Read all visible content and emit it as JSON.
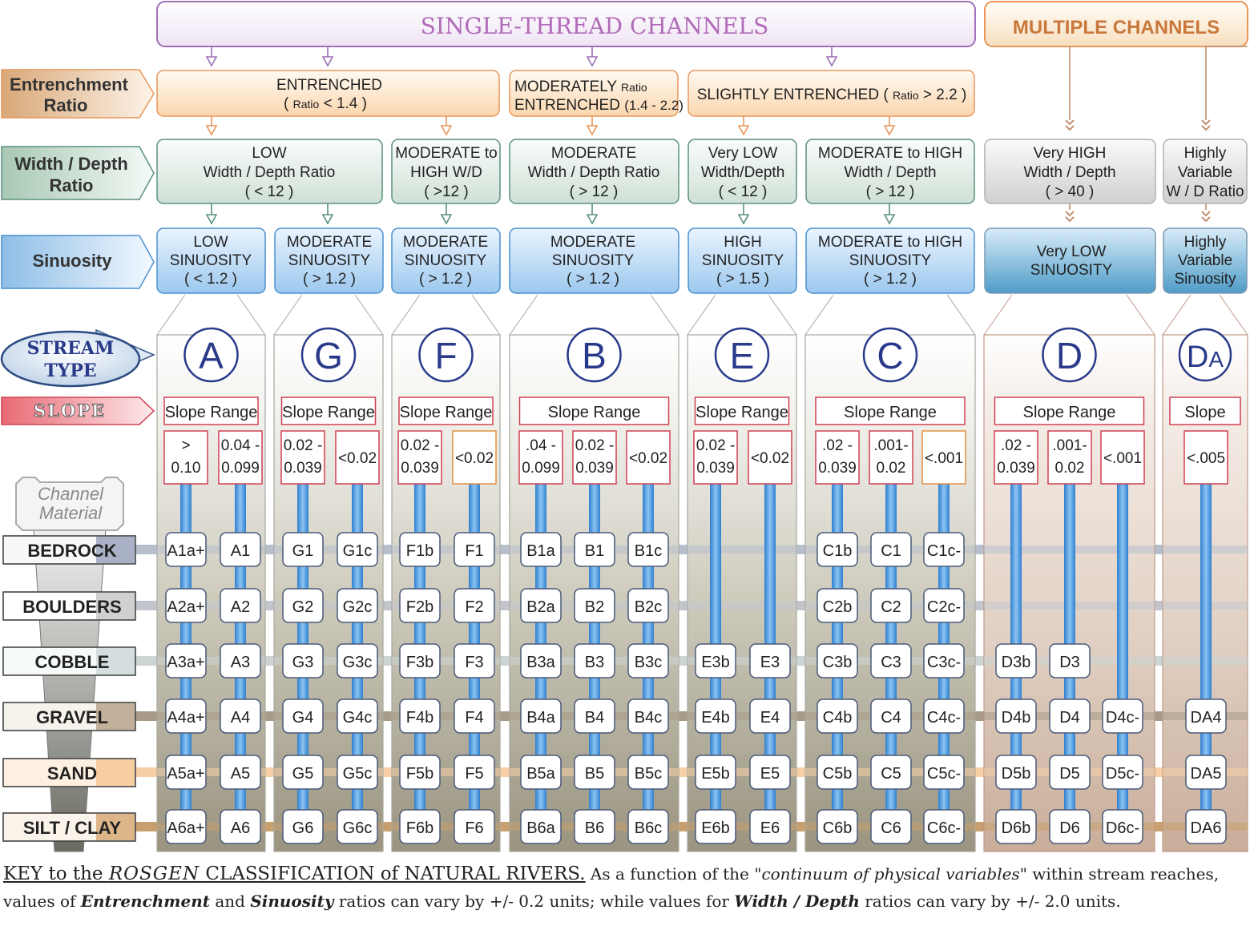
{
  "headers": {
    "single_thread": "SINGLE-THREAD  CHANNELS",
    "multiple": "MULTIPLE  CHANNELS"
  },
  "row_labels": {
    "entrenchment": [
      "Entrenchment",
      "Ratio"
    ],
    "width_depth": [
      "Width / Depth",
      "Ratio"
    ],
    "sinuosity": "Sinuosity",
    "stream_type": [
      "STREAM",
      "TYPE"
    ],
    "slope": "SLOPE",
    "channel_material": [
      "Channel",
      "Material"
    ]
  },
  "entrenchment_boxes": [
    {
      "lines": [
        [
          "ENTRENCHED"
        ],
        [
          "( ",
          "Ratio",
          "  < 1.4 )"
        ]
      ]
    },
    {
      "lines": [
        [
          "MODERATELY      ",
          "Ratio"
        ],
        [
          "ENTRENCHED ",
          "(1.4 - 2.2)"
        ]
      ]
    },
    {
      "lines": [
        [
          "SLIGHTLY  ENTRENCHED ( ",
          "Ratio",
          " > 2.2 )"
        ]
      ]
    }
  ],
  "width_depth_boxes": [
    {
      "lines": [
        "LOW",
        "Width / Depth Ratio",
        "( < 12 )"
      ]
    },
    {
      "lines": [
        "MODERATE to",
        "HIGH    W/D",
        "( >12 )"
      ]
    },
    {
      "lines": [
        "MODERATE",
        "Width / Depth Ratio",
        "( > 12 )"
      ]
    },
    {
      "lines": [
        "Very LOW",
        "Width/Depth",
        "( < 12 )"
      ]
    },
    {
      "lines": [
        "MODERATE to HIGH",
        "Width / Depth",
        "( > 12 )"
      ]
    },
    {
      "lines": [
        "Very HIGH",
        "Width / Depth",
        "( > 40 )"
      ]
    },
    {
      "lines": [
        "Highly",
        "Variable",
        "W / D Ratio"
      ]
    }
  ],
  "sinuosity_boxes": [
    {
      "lines": [
        "LOW",
        "SINUOSITY",
        "( < 1.2 )"
      ]
    },
    {
      "lines": [
        "MODERATE",
        "SINUOSITY",
        "( > 1.2 )"
      ]
    },
    {
      "lines": [
        "MODERATE",
        "SINUOSITY",
        "( > 1.2 )"
      ]
    },
    {
      "lines": [
        "MODERATE",
        "SINUOSITY",
        "( > 1.2 )"
      ]
    },
    {
      "lines": [
        "HIGH",
        "SINUOSITY",
        "( > 1.5 )"
      ]
    },
    {
      "lines": [
        "MODERATE to HIGH",
        "SINUOSITY",
        "( > 1.2 )"
      ]
    },
    {
      "lines": [
        "Very LOW",
        "SINUOSITY"
      ]
    },
    {
      "lines": [
        "Highly",
        "Variable",
        "Sinuosity"
      ]
    }
  ],
  "materials": [
    "BEDROCK",
    "BOULDERS",
    "COBBLE",
    "GRAVEL",
    "SAND",
    "SILT / CLAY"
  ],
  "stream_types": [
    {
      "letter": "A",
      "slope_label": "Slope Range",
      "slopes": [
        [
          ">",
          "0.10"
        ],
        [
          "0.04 -",
          "0.099"
        ]
      ],
      "codes": [
        [
          "A1a+",
          "A2a+",
          "A3a+",
          "A4a+",
          "A5a+",
          "A6a+"
        ],
        [
          "A1",
          "A2",
          "A3",
          "A4",
          "A5",
          "A6"
        ]
      ]
    },
    {
      "letter": "G",
      "slope_label": "Slope Range",
      "slopes": [
        [
          "0.02 -",
          "0.039"
        ],
        [
          "<0.02"
        ]
      ],
      "codes": [
        [
          "G1",
          "G2",
          "G3",
          "G4",
          "G5",
          "G6"
        ],
        [
          "G1c",
          "G2c",
          "G3c",
          "G4c",
          "G5c",
          "G6c"
        ]
      ]
    },
    {
      "letter": "F",
      "slope_label": "Slope Range",
      "slopes": [
        [
          "0.02 -",
          "0.039"
        ],
        [
          "<0.02"
        ]
      ],
      "codes": [
        [
          "F1b",
          "F2b",
          "F3b",
          "F4b",
          "F5b",
          "F6b"
        ],
        [
          "F1",
          "F2",
          "F3",
          "F4",
          "F5",
          "F6"
        ]
      ]
    },
    {
      "letter": "B",
      "slope_label": "Slope  Range",
      "slopes": [
        [
          ".04 -",
          "0.099"
        ],
        [
          "0.02 -",
          "0.039"
        ],
        [
          "<0.02"
        ]
      ],
      "codes": [
        [
          "B1a",
          "B2a",
          "B3a",
          "B4a",
          "B5a",
          "B6a"
        ],
        [
          "B1",
          "B2",
          "B3",
          "B4",
          "B5",
          "B6"
        ],
        [
          "B1c",
          "B2c",
          "B3c",
          "B4c",
          "B5c",
          "B6c"
        ]
      ]
    },
    {
      "letter": "E",
      "slope_label": "Slope Range",
      "slopes": [
        [
          "0.02 -",
          "0.039"
        ],
        [
          "<0.02"
        ]
      ],
      "codes": [
        [
          "",
          "",
          "E3b",
          "E4b",
          "E5b",
          "E6b"
        ],
        [
          "",
          "",
          "E3",
          "E4",
          "E5",
          "E6"
        ]
      ]
    },
    {
      "letter": "C",
      "slope_label": "Slope  Range",
      "slopes": [
        [
          ".02 -",
          "0.039"
        ],
        [
          ".001-",
          "0.02"
        ],
        [
          "<.001"
        ]
      ],
      "codes": [
        [
          "C1b",
          "C2b",
          "C3b",
          "C4b",
          "C5b",
          "C6b"
        ],
        [
          "C1",
          "C2",
          "C3",
          "C4",
          "C5",
          "C6"
        ],
        [
          "C1c-",
          "C2c-",
          "C3c-",
          "C4c-",
          "C5c-",
          "C6c-"
        ]
      ]
    },
    {
      "letter": "D",
      "slope_label": "Slope  Range",
      "slopes": [
        [
          ".02 -",
          "0.039"
        ],
        [
          ".001-",
          "0.02"
        ],
        [
          "<.001"
        ]
      ],
      "codes": [
        [
          "",
          "",
          "D3b",
          "D4b",
          "D5b",
          "D6b"
        ],
        [
          "",
          "",
          "D3",
          "D4",
          "D5",
          "D6"
        ],
        [
          "",
          "",
          "",
          "D4c-",
          "D5c-",
          "D6c-"
        ]
      ]
    },
    {
      "letter": "DA",
      "slope_label": "Slope",
      "slopes": [
        [
          "<.005"
        ]
      ],
      "codes": [
        [
          "",
          "",
          "",
          "DA4",
          "DA5",
          "DA6"
        ]
      ]
    }
  ],
  "caption": {
    "key_prefix": "KEY to the ",
    "rosgen": "ROSGEN",
    "key_suffix": "  CLASSIFICATION of NATURAL RIVERS.",
    "p1": "    As a function of the  \"",
    "continuum": "continuum of physical variables",
    "p2": "\"  within stream reaches, values of  ",
    "entrenchment": "Entrenchment",
    "and": " and ",
    "sinuosity": "Sinuosity",
    "p3": "  ratios can vary by +/- 0.2 units; while values for ",
    "wd": "Width / Depth",
    "p4": "  ratios can vary by +/- 2.0 units."
  },
  "colors": {
    "purple": "#a070b8",
    "orange": "#e8965a",
    "teal": "#5a9080",
    "blue": "#4a90d0",
    "slope_red": "#d04050",
    "letter": "#2a3a8a",
    "tan": "#c09070"
  }
}
